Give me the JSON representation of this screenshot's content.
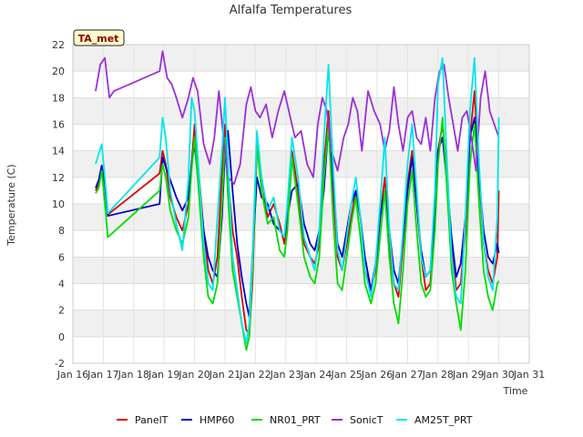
{
  "chart_data": {
    "type": "line",
    "title": "Alfalfa Temperatures",
    "xlabel": "Time",
    "ylabel": "Temperature (C)",
    "badge": "TA_met",
    "xlim": [
      16,
      31
    ],
    "ylim": [
      -2,
      22
    ],
    "x_ticks": [
      16,
      17,
      18,
      19,
      20,
      21,
      22,
      23,
      24,
      25,
      26,
      27,
      28,
      29,
      30,
      31
    ],
    "x_tick_labels": [
      "Jan 16",
      "Jan 17",
      "Jan 18",
      "Jan 19",
      "Jan 20",
      "Jan 21",
      "Jan 22",
      "Jan 23",
      "Jan 24",
      "Jan 25",
      "Jan 26",
      "Jan 27",
      "Jan 28",
      "Jan 29",
      "Jan 30",
      "Jan 31"
    ],
    "y_ticks": [
      -2,
      0,
      2,
      4,
      6,
      8,
      10,
      12,
      14,
      16,
      18,
      20,
      22
    ],
    "grid": true,
    "legend_position": "bottom",
    "series": [
      {
        "name": "PanelT",
        "color": "#dd0000",
        "x": [
          16.75,
          16.85,
          16.95,
          17.05,
          17.15,
          18.85,
          18.95,
          19.05,
          19.2,
          19.4,
          19.6,
          19.8,
          19.9,
          20.0,
          20.15,
          20.3,
          20.45,
          20.6,
          20.75,
          20.9,
          21.0,
          21.1,
          21.25,
          21.4,
          21.55,
          21.7,
          21.8,
          21.9,
          22.05,
          22.2,
          22.4,
          22.6,
          22.8,
          22.95,
          23.05,
          23.2,
          23.4,
          23.6,
          23.8,
          23.95,
          24.1,
          24.25,
          24.4,
          24.55,
          24.7,
          24.85,
          25.0,
          25.15,
          25.3,
          25.45,
          25.6,
          25.8,
          25.95,
          26.1,
          26.25,
          26.4,
          26.55,
          26.7,
          26.85,
          27.0,
          27.15,
          27.3,
          27.45,
          27.6,
          27.75,
          27.9,
          28.0,
          28.15,
          28.3,
          28.45,
          28.6,
          28.75,
          28.9,
          29.05,
          29.2,
          29.35,
          29.5,
          29.65,
          29.8,
          29.95,
          30.0
        ],
        "y": [
          11,
          11.5,
          12.8,
          11.5,
          9.2,
          12.3,
          14,
          13,
          10.5,
          9,
          8,
          10,
          13,
          16,
          12,
          8,
          5,
          4,
          6,
          12.5,
          16,
          12,
          8,
          6,
          3,
          0.5,
          0.2,
          4,
          14.2,
          12,
          9,
          10,
          8.5,
          7,
          9,
          14,
          11,
          7,
          6,
          5.5,
          7,
          13,
          17,
          11,
          6,
          5,
          7,
          9,
          11,
          9,
          5,
          3.5,
          5,
          9,
          12,
          7,
          4,
          3,
          7,
          11.5,
          14,
          10,
          6,
          3.5,
          4,
          9,
          14,
          16,
          12,
          7,
          3.5,
          4,
          8,
          15,
          18.5,
          12,
          7,
          5,
          4,
          6,
          11
        ]
      },
      {
        "name": "HMP60",
        "color": "#0000cc",
        "x": [
          16.75,
          16.85,
          16.95,
          17.05,
          17.15,
          18.85,
          18.95,
          19.05,
          19.2,
          19.4,
          19.6,
          19.8,
          19.9,
          20.0,
          20.15,
          20.3,
          20.45,
          20.6,
          20.75,
          20.9,
          21.0,
          21.1,
          21.25,
          21.4,
          21.55,
          21.7,
          21.8,
          21.9,
          22.05,
          22.2,
          22.4,
          22.6,
          22.8,
          22.95,
          23.05,
          23.2,
          23.4,
          23.6,
          23.8,
          23.95,
          24.1,
          24.25,
          24.4,
          24.55,
          24.7,
          24.85,
          25.0,
          25.15,
          25.3,
          25.45,
          25.6,
          25.8,
          25.95,
          26.1,
          26.25,
          26.4,
          26.55,
          26.7,
          26.85,
          27.0,
          27.15,
          27.3,
          27.45,
          27.6,
          27.75,
          27.9,
          28.0,
          28.15,
          28.3,
          28.45,
          28.6,
          28.75,
          28.9,
          29.05,
          29.2,
          29.35,
          29.5,
          29.65,
          29.8,
          29.95,
          30.0
        ],
        "y": [
          11.2,
          11.8,
          12.9,
          11.5,
          9.1,
          10,
          13.5,
          12.8,
          11.8,
          10.5,
          9.5,
          10.5,
          13,
          14.5,
          11,
          8,
          6,
          5,
          4.5,
          9,
          14,
          15.5,
          11,
          7,
          4.5,
          2.5,
          1.5,
          6,
          12,
          10.5,
          10,
          8.5,
          8,
          7.5,
          9,
          11,
          11.5,
          8.5,
          7,
          6.5,
          8,
          11,
          16,
          12,
          7,
          6,
          8,
          10,
          11,
          9,
          6,
          3.5,
          5.5,
          9,
          11,
          8,
          5,
          4,
          7.5,
          11,
          13.5,
          10,
          6.5,
          4.5,
          5,
          9,
          14,
          15,
          11.5,
          7.5,
          4.5,
          5.5,
          9,
          15,
          16.5,
          12,
          8,
          6,
          5.5,
          7,
          6.3
        ]
      },
      {
        "name": "NR01_PRT",
        "color": "#00dd00",
        "x": [
          16.75,
          16.85,
          16.95,
          17.05,
          17.15,
          18.85,
          18.95,
          19.05,
          19.2,
          19.4,
          19.6,
          19.8,
          19.9,
          20.0,
          20.15,
          20.3,
          20.45,
          20.6,
          20.75,
          20.9,
          21.0,
          21.1,
          21.25,
          21.4,
          21.55,
          21.7,
          21.8,
          21.9,
          22.05,
          22.2,
          22.4,
          22.6,
          22.8,
          22.95,
          23.05,
          23.2,
          23.4,
          23.6,
          23.8,
          23.95,
          24.1,
          24.25,
          24.4,
          24.55,
          24.7,
          24.85,
          25.0,
          25.15,
          25.3,
          25.45,
          25.6,
          25.8,
          25.95,
          26.1,
          26.25,
          26.4,
          26.55,
          26.7,
          26.85,
          27.0,
          27.15,
          27.3,
          27.45,
          27.6,
          27.75,
          27.9,
          28.0,
          28.15,
          28.3,
          28.45,
          28.6,
          28.75,
          28.9,
          29.05,
          29.2,
          29.35,
          29.5,
          29.65,
          29.8,
          29.95,
          30.0
        ],
        "y": [
          10.8,
          11.2,
          12.5,
          10,
          7.5,
          11,
          13,
          12,
          9.5,
          8,
          7,
          9,
          12.5,
          15,
          10.5,
          6,
          3,
          2.5,
          4,
          10,
          15,
          10.5,
          5,
          3,
          1,
          -1,
          0,
          5,
          14.5,
          11,
          8.5,
          9,
          6.5,
          6,
          8,
          13.5,
          10,
          6,
          4.5,
          4,
          6,
          12,
          16,
          9,
          4,
          3.5,
          6,
          8.5,
          10.5,
          7.5,
          4,
          2.5,
          4,
          7.5,
          11,
          6,
          2.5,
          1,
          5,
          10,
          12.5,
          8,
          4,
          3,
          3.5,
          8,
          13,
          16.5,
          11,
          5,
          2.5,
          0.5,
          5,
          13,
          16,
          10,
          5,
          3,
          2,
          4,
          4.2
        ]
      },
      {
        "name": "SonicT",
        "color": "#9b30d9",
        "x": [
          16.75,
          16.9,
          17.05,
          17.2,
          17.35,
          18.85,
          18.95,
          19.1,
          19.25,
          19.4,
          19.6,
          19.8,
          19.95,
          20.1,
          20.3,
          20.5,
          20.65,
          20.8,
          20.95,
          21.1,
          21.3,
          21.5,
          21.7,
          21.85,
          22.0,
          22.15,
          22.35,
          22.55,
          22.75,
          22.95,
          23.1,
          23.3,
          23.5,
          23.7,
          23.9,
          24.05,
          24.2,
          24.35,
          24.5,
          24.7,
          24.9,
          25.05,
          25.2,
          25.35,
          25.5,
          25.7,
          25.9,
          26.1,
          26.25,
          26.4,
          26.55,
          26.7,
          26.85,
          27.0,
          27.15,
          27.3,
          27.45,
          27.6,
          27.75,
          27.9,
          28.05,
          28.2,
          28.35,
          28.5,
          28.65,
          28.8,
          28.95,
          29.1,
          29.25,
          29.4,
          29.55,
          29.7,
          29.85,
          30.0
        ],
        "y": [
          18.5,
          20.5,
          21,
          18,
          18.5,
          20,
          21.5,
          19.5,
          19,
          18,
          16.5,
          18,
          19.5,
          18.5,
          14.5,
          13,
          15,
          18.5,
          15,
          12,
          11.5,
          13,
          17.5,
          18.8,
          17,
          16.5,
          17.5,
          15,
          17,
          18.5,
          17,
          15,
          15.5,
          13,
          12,
          16,
          18,
          17,
          14,
          12.5,
          15,
          16,
          18,
          17,
          14,
          18.5,
          17,
          16,
          14,
          15.5,
          18.8,
          16,
          14,
          16.5,
          17,
          15,
          14.5,
          16.5,
          14,
          18,
          20,
          20.5,
          18,
          16,
          14,
          16.5,
          17,
          15,
          12.5,
          18,
          20,
          17,
          16,
          15
        ]
      },
      {
        "name": "AM25T_PRT",
        "color": "#00e5ee",
        "x": [
          16.75,
          16.85,
          16.95,
          17.05,
          17.15,
          18.85,
          18.95,
          19.05,
          19.2,
          19.4,
          19.6,
          19.8,
          19.9,
          20.0,
          20.15,
          20.3,
          20.45,
          20.6,
          20.75,
          20.9,
          21.0,
          21.1,
          21.25,
          21.4,
          21.55,
          21.7,
          21.8,
          21.9,
          22.05,
          22.2,
          22.4,
          22.6,
          22.8,
          22.95,
          23.05,
          23.2,
          23.4,
          23.6,
          23.8,
          23.95,
          24.1,
          24.25,
          24.4,
          24.55,
          24.7,
          24.85,
          25.0,
          25.15,
          25.3,
          25.45,
          25.6,
          25.8,
          25.95,
          26.1,
          26.25,
          26.4,
          26.55,
          26.7,
          26.85,
          27.0,
          27.15,
          27.3,
          27.45,
          27.6,
          27.75,
          27.9,
          28.0,
          28.15,
          28.3,
          28.45,
          28.6,
          28.75,
          28.9,
          29.05,
          29.2,
          29.35,
          29.5,
          29.65,
          29.8,
          29.95,
          30.0
        ],
        "y": [
          13,
          13.8,
          14.5,
          12,
          9.3,
          13.5,
          16.5,
          15,
          11,
          8.5,
          6.5,
          12,
          18,
          17,
          12,
          7,
          4,
          3.5,
          9,
          14,
          18,
          13,
          6,
          3.5,
          1,
          -0.5,
          1,
          6,
          15.5,
          12,
          9.5,
          10.5,
          8,
          7.5,
          10,
          15,
          12,
          7.5,
          6,
          5,
          8,
          15,
          20.5,
          13,
          6.5,
          5,
          7.5,
          10,
          12,
          9,
          5,
          3,
          5.5,
          10,
          15,
          8,
          4,
          3.5,
          8,
          13,
          16,
          11,
          6,
          4.5,
          5,
          11,
          19,
          21,
          13,
          6,
          3,
          2.5,
          9,
          17,
          21,
          13,
          7,
          4.5,
          3.5,
          9,
          16.5
        ]
      }
    ]
  }
}
